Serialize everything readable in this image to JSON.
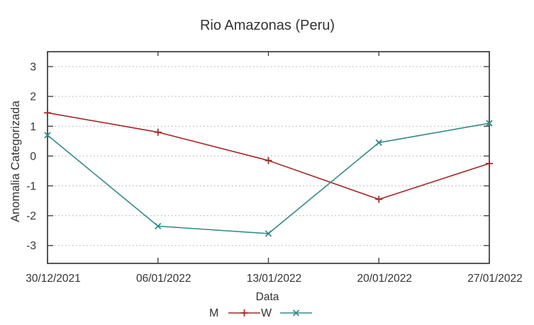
{
  "chart_data": {
    "type": "line",
    "title": "Rio Amazonas (Peru)",
    "xlabel": "Data",
    "ylabel": "Anomalia Categorizada",
    "x": [
      "30/12/2021",
      "06/01/2022",
      "13/01/2022",
      "20/01/2022",
      "27/01/2022"
    ],
    "series": [
      {
        "name": "M",
        "color": "#a52727",
        "marker": "plus",
        "values": [
          1.45,
          0.8,
          -0.15,
          -1.45,
          -0.25
        ]
      },
      {
        "name": "W",
        "color": "#348a8a",
        "marker": "cross",
        "values": [
          0.7,
          -2.35,
          -2.6,
          0.45,
          1.1
        ]
      }
    ],
    "yticks": [
      3,
      2,
      1,
      0,
      -1,
      -2,
      -3
    ],
    "ylim": [
      -3.6,
      3.5
    ],
    "grid": "horizontal-dotted",
    "legend_position": "bottom-center",
    "colors": {
      "axis": "#444444",
      "grid": "#aaaaaa",
      "text": "#333333",
      "title": "#2e2e2e"
    }
  }
}
